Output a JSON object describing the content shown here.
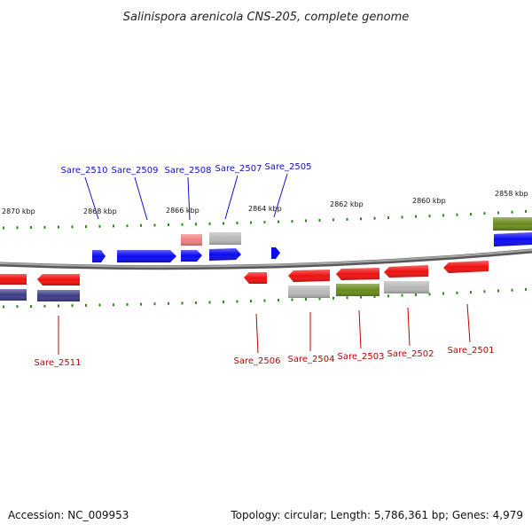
{
  "title": "Salinispora arenicola CNS-205, complete genome",
  "footer": {
    "accession": "Accession: NC_009953",
    "topology": "Topology: circular; Length: 5,786,361 bp; Genes: 4,979"
  },
  "colors": {
    "forward": "#0a0af0",
    "reverse": "#f01010",
    "pale_reverse": "#f08080",
    "grey": "#b8b8b8",
    "olive": "#6a8a1c",
    "navy": "#3c3c88",
    "tick": "#2a8a1a",
    "backbone": "#8a8a8a",
    "label_top": "#1010c8",
    "label_bot": "#c00000"
  },
  "scale": {
    "unit": "kbp",
    "labels": [
      "2870 kbp",
      "2868 kbp",
      "2866 kbp",
      "2864 kbp",
      "2862 kbp",
      "2860 kbp",
      "2858 kbp"
    ]
  },
  "genes": {
    "top": [
      "Sare_2510",
      "Sare_2509",
      "Sare_2508",
      "Sare_2507",
      "Sare_2505"
    ],
    "bottom": [
      "Sare_2511",
      "Sare_2506",
      "Sare_2504",
      "Sare_2503",
      "Sare_2502",
      "Sare_2501"
    ]
  }
}
